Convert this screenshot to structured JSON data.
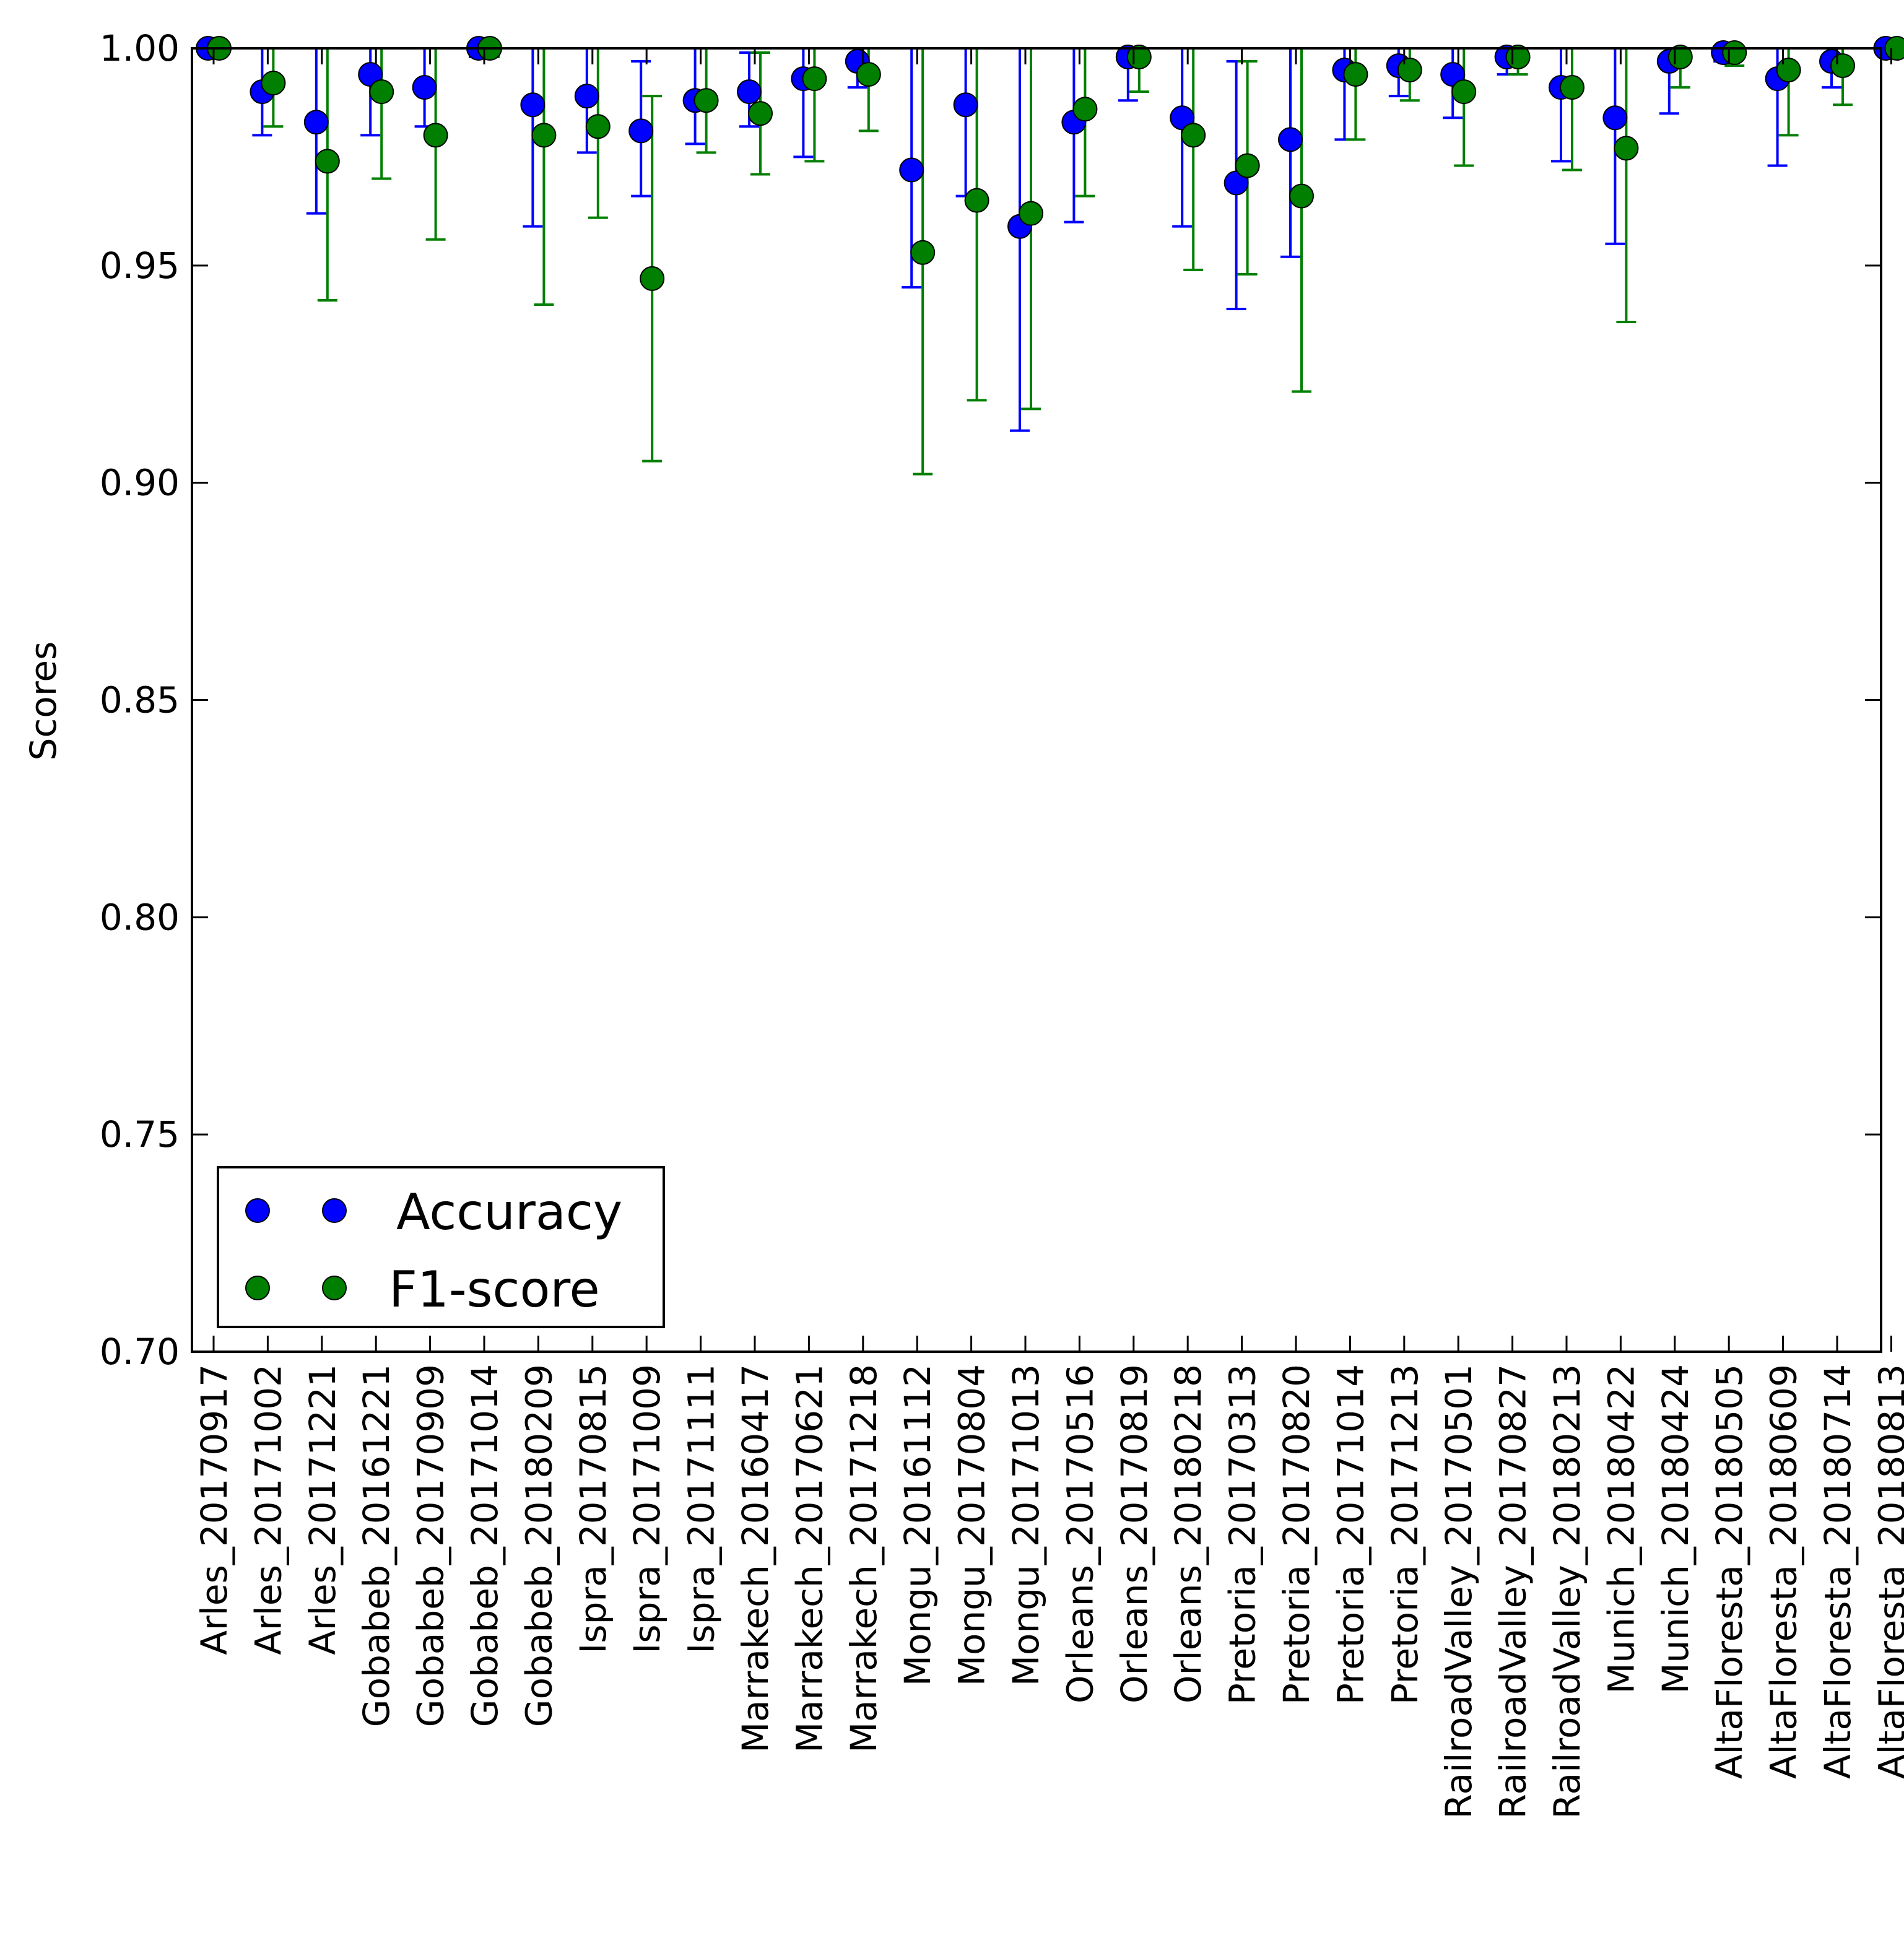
{
  "chart_data": {
    "type": "scatter",
    "title": "",
    "xlabel": "",
    "ylabel": "Scores",
    "ylim": [
      0.7,
      1.0
    ],
    "yticks": [
      "0.70",
      "0.75",
      "0.80",
      "0.85",
      "0.90",
      "0.95",
      "1.00"
    ],
    "grid": false,
    "legend_position": "bottom-left",
    "categories": [
      "Arles_20170917",
      "Arles_20171002",
      "Arles_20171221",
      "Gobabeb_20161221",
      "Gobabeb_20170909",
      "Gobabeb_20171014",
      "Gobabeb_20180209",
      "Ispra_20170815",
      "Ispra_20171009",
      "Ispra_20171111",
      "Marrakech_20160417",
      "Marrakech_20170621",
      "Marrakech_20171218",
      "Mongu_20161112",
      "Mongu_20170804",
      "Mongu_20171013",
      "Orleans_20170516",
      "Orleans_20170819",
      "Orleans_20180218",
      "Pretoria_20170313",
      "Pretoria_20170820",
      "Pretoria_20171014",
      "Pretoria_20171213",
      "RailroadValley_20170501",
      "RailroadValley_20170827",
      "RailroadValley_20180213",
      "Munich_20180422",
      "Munich_20180424",
      "AltaFloresta_20180505",
      "AltaFloresta_20180609",
      "AltaFloresta_20180714",
      "AltaFloresta_20180813"
    ],
    "series": [
      {
        "name": "Accuracy",
        "color": "#0000ff",
        "values": [
          1.0,
          0.99,
          0.983,
          0.994,
          0.991,
          1.0,
          0.987,
          0.989,
          0.981,
          0.988,
          0.99,
          0.993,
          0.997,
          0.972,
          0.987,
          0.959,
          0.983,
          0.998,
          0.984,
          0.969,
          0.979,
          0.995,
          0.996,
          0.994,
          0.998,
          0.991,
          0.984,
          0.997,
          0.999,
          0.993,
          0.997,
          1.0
        ],
        "lower": [
          1.0,
          0.98,
          0.962,
          0.98,
          0.982,
          0.998,
          0.959,
          0.976,
          0.966,
          0.978,
          0.982,
          0.975,
          0.991,
          0.945,
          0.966,
          0.912,
          0.96,
          0.988,
          0.959,
          0.94,
          0.952,
          0.979,
          0.989,
          0.984,
          0.994,
          0.974,
          0.955,
          0.985,
          0.997,
          0.973,
          0.991,
          1.0
        ],
        "upper": [
          1.0,
          1.0,
          1.0,
          1.0,
          1.0,
          1.0,
          1.0,
          1.0,
          0.997,
          1.0,
          0.999,
          1.0,
          1.0,
          1.0,
          1.0,
          1.0,
          1.0,
          1.0,
          1.0,
          0.997,
          1.0,
          1.0,
          1.0,
          1.0,
          1.0,
          1.0,
          1.0,
          1.0,
          1.0,
          1.0,
          1.0,
          1.0
        ]
      },
      {
        "name": "F1-score",
        "color": "#007f00",
        "values": [
          1.0,
          0.992,
          0.974,
          0.99,
          0.98,
          1.0,
          0.98,
          0.982,
          0.947,
          0.988,
          0.985,
          0.993,
          0.994,
          0.953,
          0.965,
          0.962,
          0.986,
          0.998,
          0.98,
          0.973,
          0.966,
          0.994,
          0.995,
          0.99,
          0.998,
          0.991,
          0.977,
          0.998,
          0.999,
          0.995,
          0.996,
          1.0
        ],
        "lower": [
          1.0,
          0.982,
          0.942,
          0.97,
          0.956,
          0.998,
          0.941,
          0.961,
          0.905,
          0.976,
          0.971,
          0.974,
          0.981,
          0.902,
          0.919,
          0.917,
          0.966,
          0.99,
          0.949,
          0.948,
          0.921,
          0.979,
          0.988,
          0.973,
          0.994,
          0.972,
          0.937,
          0.991,
          0.996,
          0.98,
          0.987,
          1.0
        ],
        "upper": [
          1.0,
          1.0,
          1.0,
          1.0,
          1.0,
          1.0,
          1.0,
          1.0,
          0.989,
          1.0,
          0.999,
          1.0,
          1.0,
          1.0,
          1.0,
          1.0,
          1.0,
          1.0,
          1.0,
          0.997,
          1.0,
          1.0,
          1.0,
          1.0,
          1.0,
          1.0,
          1.0,
          1.0,
          1.0,
          1.0,
          1.0,
          1.0
        ]
      }
    ]
  }
}
